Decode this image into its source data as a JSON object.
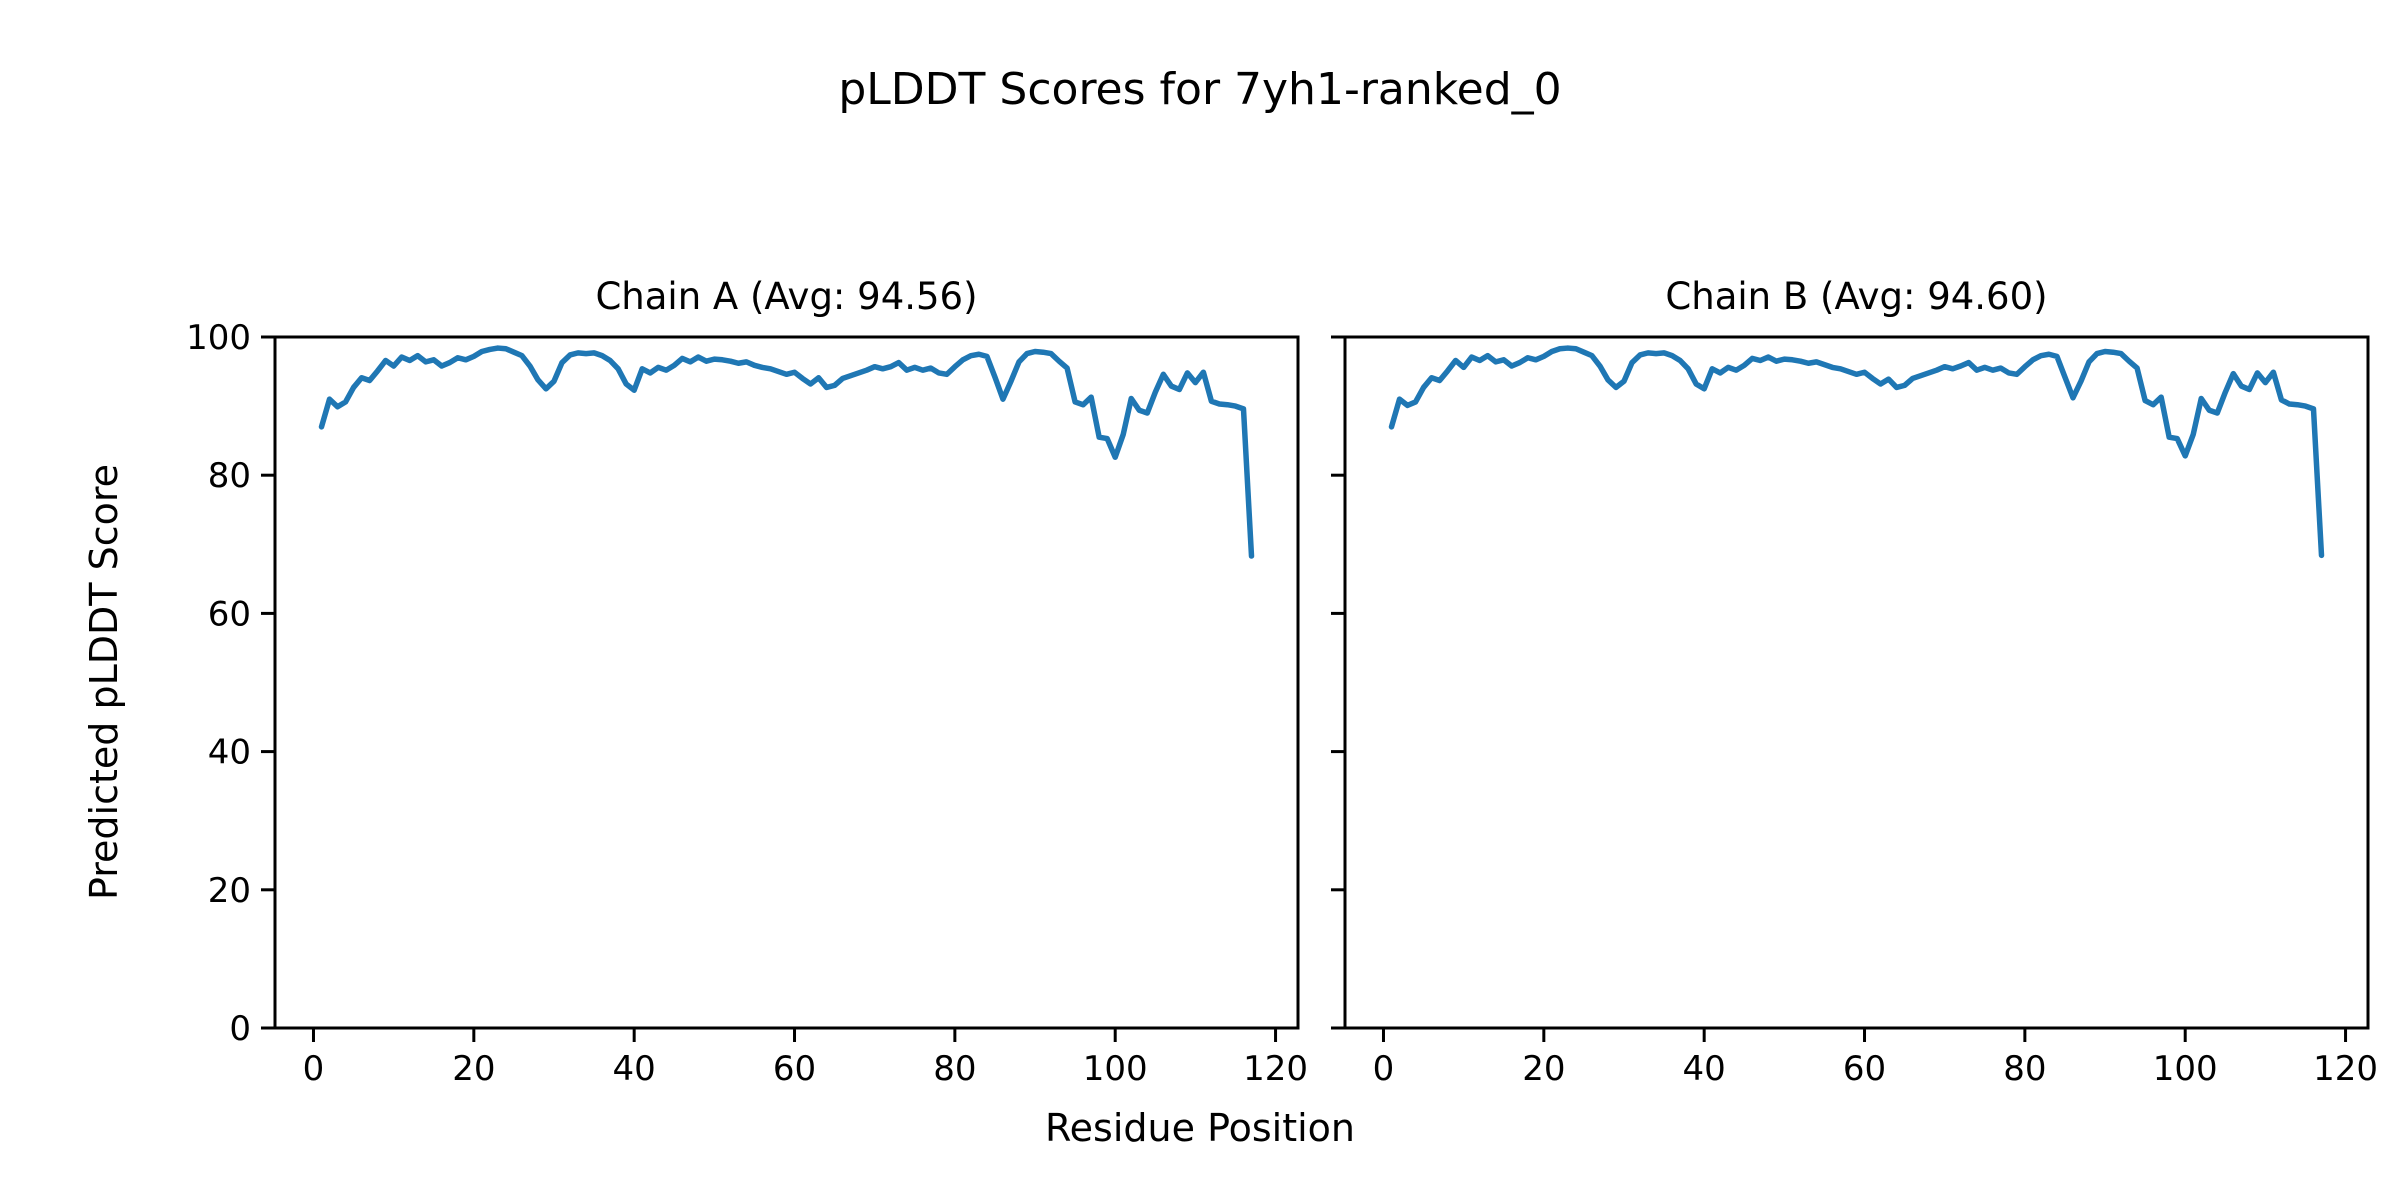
{
  "figure": {
    "title": "pLDDT Scores for 7yh1-ranked_0",
    "xlabel": "Residue Position",
    "ylabel": "Predicted pLDDT Score",
    "background_color": "#ffffff",
    "text_color": "#000000",
    "spine_color": "#000000"
  },
  "chart_data": [
    {
      "type": "line",
      "title": "Chain A (Avg: 94.56)",
      "series_name": "Chain A pLDDT",
      "avg_label": 94.56,
      "x_start": 1,
      "xlim": [
        -4.8,
        122.8
      ],
      "ylim": [
        0,
        100
      ],
      "xticks": [
        0,
        20,
        40,
        60,
        80,
        100,
        120
      ],
      "yticks": [
        0,
        20,
        40,
        60,
        80,
        100
      ],
      "show_y_tick_labels": true,
      "grid": false,
      "legend": "none",
      "line_color": "#1f77b4",
      "line_width": 5.5,
      "values": [
        87.0,
        91.0,
        89.9,
        90.6,
        92.7,
        94.1,
        93.7,
        95.1,
        96.6,
        95.8,
        97.1,
        96.6,
        97.3,
        96.4,
        96.7,
        95.8,
        96.3,
        97.0,
        96.7,
        97.2,
        97.9,
        98.2,
        98.4,
        98.3,
        97.8,
        97.3,
        95.8,
        93.8,
        92.5,
        93.6,
        96.3,
        97.4,
        97.7,
        97.6,
        97.7,
        97.3,
        96.6,
        95.4,
        93.2,
        92.3,
        95.4,
        94.8,
        95.6,
        95.2,
        95.9,
        96.9,
        96.4,
        97.1,
        96.5,
        96.8,
        96.7,
        96.5,
        96.2,
        96.4,
        95.9,
        95.6,
        95.4,
        95.0,
        94.6,
        94.9,
        94.0,
        93.2,
        94.1,
        92.7,
        93.0,
        94.0,
        94.4,
        94.8,
        95.2,
        95.7,
        95.4,
        95.7,
        96.3,
        95.2,
        95.6,
        95.2,
        95.5,
        94.8,
        94.6,
        95.7,
        96.7,
        97.3,
        97.5,
        97.2,
        94.2,
        91.0,
        93.6,
        96.4,
        97.6,
        97.9,
        97.8,
        97.6,
        96.5,
        95.5,
        90.6,
        90.2,
        91.3,
        85.5,
        85.3,
        82.6,
        85.9,
        91.1,
        89.4,
        89.0,
        92.0,
        94.6,
        92.9,
        92.4,
        94.8,
        93.4,
        94.9,
        90.7,
        90.3,
        90.2,
        90.0,
        89.6,
        68.3
      ]
    },
    {
      "type": "line",
      "title": "Chain B (Avg: 94.60)",
      "series_name": "Chain B pLDDT",
      "avg_label": 94.6,
      "x_start": 1,
      "xlim": [
        -4.8,
        122.8
      ],
      "ylim": [
        0,
        100
      ],
      "xticks": [
        0,
        20,
        40,
        60,
        80,
        100,
        120
      ],
      "yticks": [
        0,
        20,
        40,
        60,
        80,
        100
      ],
      "show_y_tick_labels": false,
      "grid": false,
      "legend": "none",
      "line_color": "#1f77b4",
      "line_width": 5.5,
      "values": [
        87.0,
        91.0,
        90.1,
        90.6,
        92.7,
        94.1,
        93.7,
        95.1,
        96.6,
        95.6,
        97.1,
        96.6,
        97.3,
        96.4,
        96.7,
        95.8,
        96.3,
        97.0,
        96.7,
        97.2,
        97.9,
        98.3,
        98.4,
        98.3,
        97.8,
        97.3,
        95.8,
        93.8,
        92.7,
        93.6,
        96.3,
        97.4,
        97.7,
        97.6,
        97.7,
        97.3,
        96.6,
        95.4,
        93.2,
        92.5,
        95.4,
        94.8,
        95.6,
        95.2,
        95.9,
        96.9,
        96.6,
        97.1,
        96.5,
        96.8,
        96.7,
        96.5,
        96.2,
        96.4,
        96.0,
        95.6,
        95.4,
        95.0,
        94.6,
        94.9,
        94.0,
        93.2,
        93.9,
        92.7,
        93.0,
        94.0,
        94.4,
        94.8,
        95.2,
        95.7,
        95.4,
        95.8,
        96.3,
        95.2,
        95.6,
        95.2,
        95.5,
        94.8,
        94.6,
        95.7,
        96.7,
        97.3,
        97.5,
        97.2,
        94.2,
        91.2,
        93.6,
        96.4,
        97.6,
        97.9,
        97.8,
        97.6,
        96.5,
        95.5,
        90.8,
        90.2,
        91.3,
        85.5,
        85.3,
        82.8,
        85.9,
        91.1,
        89.4,
        89.0,
        92.0,
        94.7,
        92.9,
        92.4,
        94.8,
        93.4,
        94.9,
        90.9,
        90.3,
        90.2,
        90.0,
        89.6,
        68.4
      ]
    }
  ]
}
